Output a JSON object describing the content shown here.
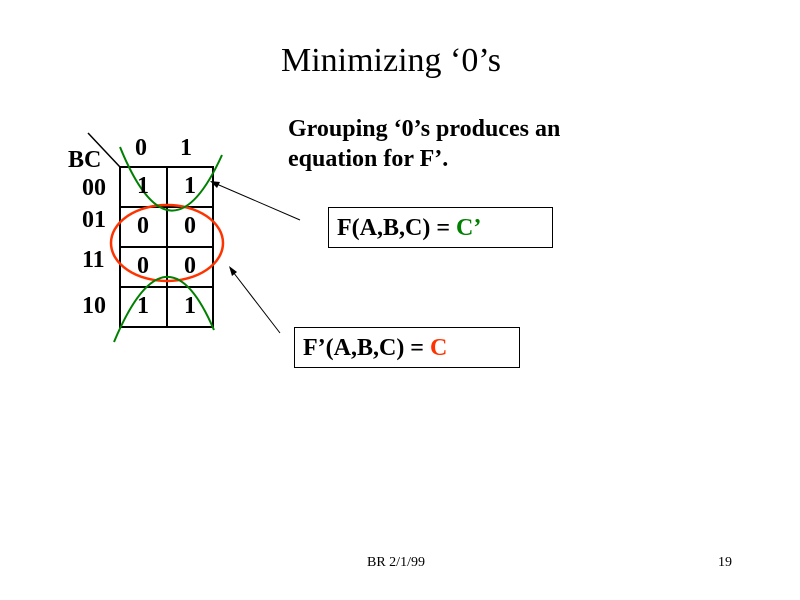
{
  "title": "Minimizing ‘0’s",
  "description": {
    "line1": "Grouping ‘0’s produces an",
    "line2": "equation for F’."
  },
  "kmap": {
    "corner_label": "BC",
    "col_headers": [
      "0",
      "1"
    ],
    "row_headers": [
      "00",
      "01",
      "11",
      "10"
    ],
    "cells": [
      [
        "1",
        "1"
      ],
      [
        "0",
        "0"
      ],
      [
        "0",
        "0"
      ],
      [
        "1",
        "1"
      ]
    ]
  },
  "equation_f": {
    "prefix": "F(A,B,C) = ",
    "value": "C’",
    "value_color": "#008000"
  },
  "equation_fprime": {
    "prefix": "F’(A,B,C) = ",
    "value": "C",
    "value_color": "#ff3300"
  },
  "footer": {
    "center": "BR 2/1/99",
    "page": "19"
  },
  "colors": {
    "group_ones": "#008000",
    "group_zeros": "#ff3300"
  }
}
